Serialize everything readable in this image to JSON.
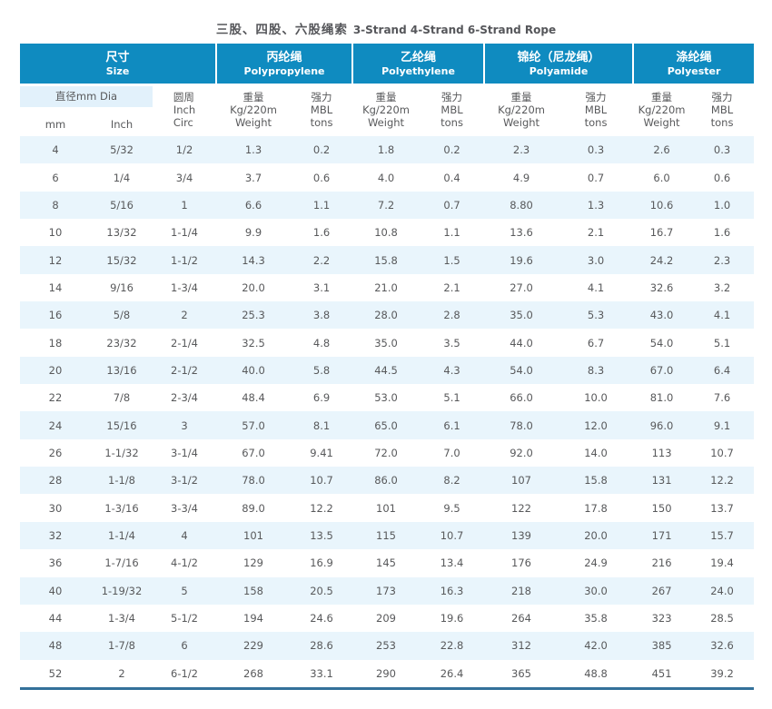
{
  "page": {
    "title_zh": "三股、四股、六股绳索",
    "title_en": "3-Strand 4-Strand 6-Strand Rope"
  },
  "colors": {
    "header_blue": "#0f8bc0",
    "stripe_blue": "#e9f5fc",
    "dia_box_blue": "#e2f1fb",
    "bottom_rule_blue": "#34719a",
    "text_gray": "#58595b"
  },
  "table": {
    "groups": [
      {
        "zh": "尺寸",
        "en": "Size"
      },
      {
        "zh": "丙纶绳",
        "en": "Polypropylene"
      },
      {
        "zh": "乙纶绳",
        "en": "Polyethylene"
      },
      {
        "zh": "锦纶（尼龙绳）",
        "en": "Polyamide"
      },
      {
        "zh": "涤纶绳",
        "en": "Polyester"
      }
    ],
    "subheader": {
      "dia": "直径mm Dia",
      "mm": "mm",
      "inch": "Inch",
      "circ_lines": [
        "圆周",
        "Inch",
        "Circ"
      ],
      "weight_lines": [
        "重量",
        "Kg/220m",
        "Weight"
      ],
      "mbl_lines": [
        "强力",
        "MBL",
        "tons"
      ]
    },
    "rows": [
      [
        "4",
        "5/32",
        "1/2",
        "1.3",
        "0.2",
        "1.8",
        "0.2",
        "2.3",
        "0.3",
        "2.6",
        "0.3"
      ],
      [
        "6",
        "1/4",
        "3/4",
        "3.7",
        "0.6",
        "4.0",
        "0.4",
        "4.9",
        "0.7",
        "6.0",
        "0.6"
      ],
      [
        "8",
        "5/16",
        "1",
        "6.6",
        "1.1",
        "7.2",
        "0.7",
        "8.80",
        "1.3",
        "10.6",
        "1.0"
      ],
      [
        "10",
        "13/32",
        "1-1/4",
        "9.9",
        "1.6",
        "10.8",
        "1.1",
        "13.6",
        "2.1",
        "16.7",
        "1.6"
      ],
      [
        "12",
        "15/32",
        "1-1/2",
        "14.3",
        "2.2",
        "15.8",
        "1.5",
        "19.6",
        "3.0",
        "24.2",
        "2.3"
      ],
      [
        "14",
        "9/16",
        "1-3/4",
        "20.0",
        "3.1",
        "21.0",
        "2.1",
        "27.0",
        "4.1",
        "32.6",
        "3.2"
      ],
      [
        "16",
        "5/8",
        "2",
        "25.3",
        "3.8",
        "28.0",
        "2.8",
        "35.0",
        "5.3",
        "43.0",
        "4.1"
      ],
      [
        "18",
        "23/32",
        "2-1/4",
        "32.5",
        "4.8",
        "35.0",
        "3.5",
        "44.0",
        "6.7",
        "54.0",
        "5.1"
      ],
      [
        "20",
        "13/16",
        "2-1/2",
        "40.0",
        "5.8",
        "44.5",
        "4.3",
        "54.0",
        "8.3",
        "67.0",
        "6.4"
      ],
      [
        "22",
        "7/8",
        "2-3/4",
        "48.4",
        "6.9",
        "53.0",
        "5.1",
        "66.0",
        "10.0",
        "81.0",
        "7.6"
      ],
      [
        "24",
        "15/16",
        "3",
        "57.0",
        "8.1",
        "65.0",
        "6.1",
        "78.0",
        "12.0",
        "96.0",
        "9.1"
      ],
      [
        "26",
        "1-1/32",
        "3-1/4",
        "67.0",
        "9.41",
        "72.0",
        "7.0",
        "92.0",
        "14.0",
        "113",
        "10.7"
      ],
      [
        "28",
        "1-1/8",
        "3-1/2",
        "78.0",
        "10.7",
        "86.0",
        "8.2",
        "107",
        "15.8",
        "131",
        "12.2"
      ],
      [
        "30",
        "1-3/16",
        "3-3/4",
        "89.0",
        "12.2",
        "101",
        "9.5",
        "122",
        "17.8",
        "150",
        "13.7"
      ],
      [
        "32",
        "1-1/4",
        "4",
        "101",
        "13.5",
        "115",
        "10.7",
        "139",
        "20.0",
        "171",
        "15.7"
      ],
      [
        "36",
        "1-7/16",
        "4-1/2",
        "129",
        "16.9",
        "145",
        "13.4",
        "176",
        "24.9",
        "216",
        "19.4"
      ],
      [
        "40",
        "1-19/32",
        "5",
        "158",
        "20.5",
        "173",
        "16.3",
        "218",
        "30.0",
        "267",
        "24.0"
      ],
      [
        "44",
        "1-3/4",
        "5-1/2",
        "194",
        "24.6",
        "209",
        "19.6",
        "264",
        "35.8",
        "323",
        "28.5"
      ],
      [
        "48",
        "1-7/8",
        "6",
        "229",
        "28.6",
        "253",
        "22.8",
        "312",
        "42.0",
        "385",
        "32.6"
      ],
      [
        "52",
        "2",
        "6-1/2",
        "268",
        "33.1",
        "290",
        "26.4",
        "365",
        "48.8",
        "451",
        "39.2"
      ]
    ]
  }
}
